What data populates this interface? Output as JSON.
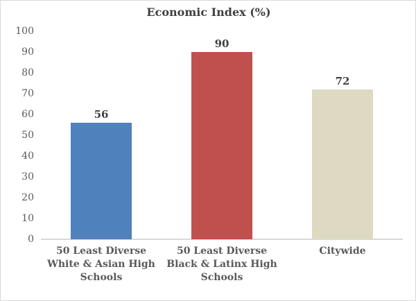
{
  "chart_data": {
    "type": "bar",
    "title": "Economic Index (%)",
    "categories": [
      "50 Least Diverse White & Asian High Schools",
      "50 Least Diverse Black & Latinx High Schools",
      "Citywide"
    ],
    "values": [
      56,
      90,
      72
    ],
    "data_labels": [
      "56",
      "90",
      "72"
    ],
    "bar_colors": [
      "#4F81BD",
      "#C0504D",
      "#DDD9C3"
    ],
    "xlabel": "",
    "ylabel": "",
    "ylim": [
      0,
      100
    ],
    "yticks": [
      0,
      10,
      20,
      30,
      40,
      50,
      60,
      70,
      80,
      90,
      100
    ],
    "grid": false,
    "legend": "none"
  },
  "colors": {
    "title": "#404040",
    "value_label": "#404040",
    "tick_label": "#595959",
    "category_label": "#595959",
    "axis_line": "#D9D9D9",
    "chart_border": "#D9D9D9",
    "background": "#FFFFFF"
  }
}
